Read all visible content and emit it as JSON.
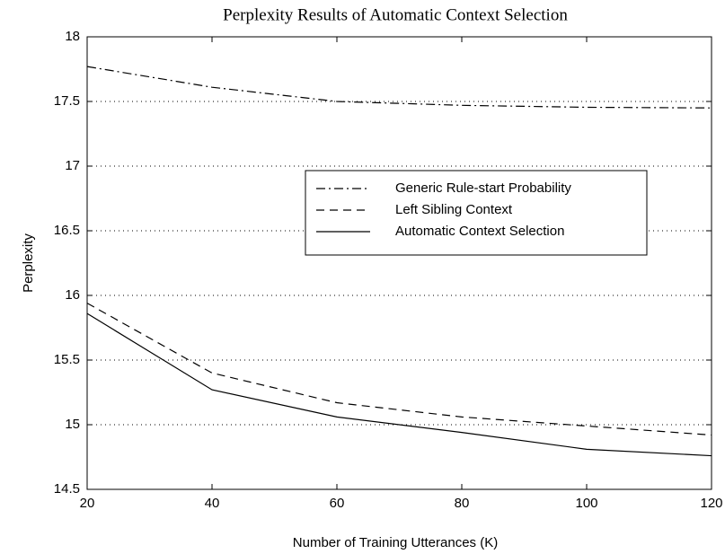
{
  "chart_data": {
    "type": "line",
    "title": "Perplexity Results of Automatic Context Selection",
    "x_label": "Number of Training Utterances (K)",
    "y_label": "Perplexity",
    "x": [
      20,
      40,
      60,
      80,
      100,
      120
    ],
    "series": [
      {
        "name": "Generic Rule-start Probability",
        "color": "#000000",
        "linestyle": "dashdot",
        "values": [
          17.77,
          17.61,
          17.5,
          17.47,
          17.455,
          17.45
        ]
      },
      {
        "name": "Left Sibling Context",
        "color": "#000000",
        "linestyle": "dashed",
        "values": [
          15.94,
          15.4,
          15.17,
          15.06,
          14.99,
          14.92
        ]
      },
      {
        "name": "Automatic Context Selection",
        "color": "#000000",
        "linestyle": "solid",
        "values": [
          15.86,
          15.27,
          15.06,
          14.94,
          14.81,
          14.76
        ]
      }
    ],
    "xlim": [
      20,
      120
    ],
    "xticks": [
      20,
      40,
      60,
      80,
      100,
      120
    ],
    "ylim": [
      14.5,
      18
    ],
    "yticks": [
      14.5,
      15,
      15.5,
      16,
      16.5,
      17,
      17.5,
      18
    ],
    "grid": true,
    "legend": "right"
  }
}
